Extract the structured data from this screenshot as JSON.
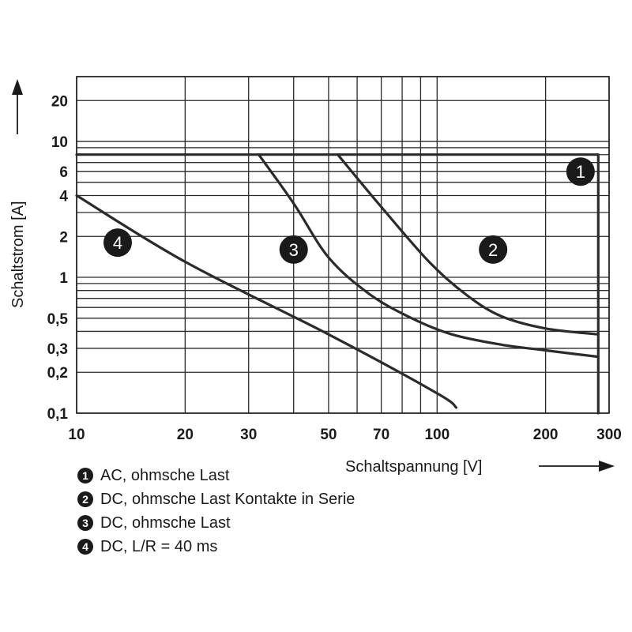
{
  "chart_data": {
    "type": "line",
    "xlabel": "Schaltspannung [V]",
    "ylabel": "Schaltstrom [A]",
    "xscale": "log",
    "yscale": "log",
    "xlim": [
      10,
      300
    ],
    "ylim": [
      0.1,
      30
    ],
    "grid": true,
    "x_ticks": [
      {
        "value": 10,
        "label": "10"
      },
      {
        "value": 20,
        "label": "20"
      },
      {
        "value": 30,
        "label": "30"
      },
      {
        "value": 50,
        "label": "50"
      },
      {
        "value": 70,
        "label": "70"
      },
      {
        "value": 100,
        "label": "100"
      },
      {
        "value": 200,
        "label": "200"
      },
      {
        "value": 300,
        "label": "300"
      }
    ],
    "y_ticks": [
      {
        "value": 0.1,
        "label": "0,1"
      },
      {
        "value": 0.2,
        "label": "0,2"
      },
      {
        "value": 0.3,
        "label": "0,3"
      },
      {
        "value": 0.5,
        "label": "0,5"
      },
      {
        "value": 1,
        "label": "1"
      },
      {
        "value": 2,
        "label": "2"
      },
      {
        "value": 4,
        "label": "4"
      },
      {
        "value": 6,
        "label": "6"
      },
      {
        "value": 10,
        "label": "10"
      },
      {
        "value": 20,
        "label": "20"
      }
    ],
    "x_grid": [
      10,
      20,
      30,
      40,
      50,
      60,
      70,
      80,
      90,
      100,
      200,
      300
    ],
    "y_grid": [
      0.1,
      0.2,
      0.3,
      0.4,
      0.5,
      0.6,
      0.7,
      0.8,
      0.9,
      1,
      2,
      3,
      4,
      5,
      6,
      7,
      8,
      9,
      10,
      20,
      30
    ],
    "series": [
      {
        "marker": "1",
        "name": "AC, ohmsche Last",
        "label_at": [
          250,
          6
        ],
        "points": [
          [
            10,
            8
          ],
          [
            280,
            8
          ],
          [
            280,
            0.1
          ]
        ]
      },
      {
        "marker": "2",
        "name": "DC, ohmsche Last Kontakte in Serie",
        "label_at": [
          143,
          1.6
        ],
        "points": [
          [
            53,
            8
          ],
          [
            70,
            3.3
          ],
          [
            95,
            1.3
          ],
          [
            120,
            0.75
          ],
          [
            150,
            0.52
          ],
          [
            200,
            0.42
          ],
          [
            280,
            0.38
          ]
        ]
      },
      {
        "marker": "3",
        "name": "DC, ohmsche Last",
        "label_at": [
          40,
          1.6
        ],
        "points": [
          [
            32,
            8
          ],
          [
            40,
            3.5
          ],
          [
            50,
            1.4
          ],
          [
            65,
            0.75
          ],
          [
            85,
            0.5
          ],
          [
            110,
            0.38
          ],
          [
            150,
            0.32
          ],
          [
            200,
            0.29
          ],
          [
            280,
            0.26
          ]
        ]
      },
      {
        "marker": "4",
        "name": "DC, L/R = 40 ms",
        "label_at": [
          13,
          1.8
        ],
        "points": [
          [
            10,
            4
          ],
          [
            20,
            1.3
          ],
          [
            50,
            0.38
          ],
          [
            100,
            0.14
          ],
          [
            113,
            0.11
          ]
        ]
      }
    ]
  }
}
